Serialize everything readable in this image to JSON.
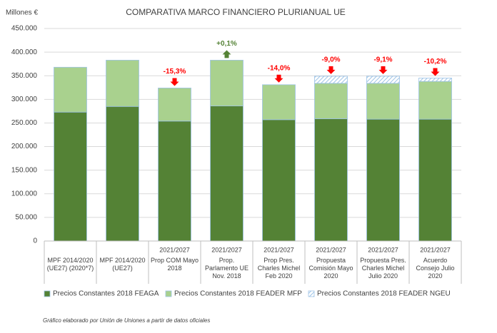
{
  "chart_data": {
    "type": "stacked_bar",
    "title": "COMPARATIVA MARCO FINANCIERO PLURIANUAL UE",
    "y_label": "Millones €",
    "note": "Gráfico elaborado por Unión de Uniones a partir de datos oficiales",
    "categories": [
      "MPF 2014/2020 (UE27) (2020*7)",
      "MPF 2014/2020 (UE27)",
      "Prop COM Mayo 2018",
      "Prop. Parlamento UE Nov. 2018",
      "Prop Pres. Charles Michel Feb 2020",
      "Propuesta Comisión Mayo 2020",
      "Propuesta Pres. Charles Michel Julio 2020",
      "Acuerdo Consejo Julio 2020"
    ],
    "periods": [
      null,
      null,
      "2021/2027",
      "2021/2027",
      "2021/2027",
      "2021/2027",
      "2021/2027",
      "2021/2027"
    ],
    "series": [
      {
        "name": "Precios Constantes 2018 FEAGA",
        "color": "#548235",
        "values": [
          273000,
          285000,
          254000,
          286000,
          257000,
          259000,
          258000,
          258000
        ]
      },
      {
        "name": "Precios Constantes 2018 FEADER MFP",
        "color": "#a9d18e",
        "values": [
          95000,
          98000,
          70000,
          97000,
          74000,
          75000,
          76000,
          80000
        ]
      },
      {
        "name": "Precios Constantes 2018 FEADER NGEU",
        "color": "#9dc3e6",
        "pattern": "hatch",
        "values": [
          0,
          0,
          0,
          0,
          0,
          15000,
          15000,
          7000
        ]
      }
    ],
    "annotations": [
      {
        "index": 2,
        "text": "-15,3%",
        "color": "#ff0000",
        "direction": "down"
      },
      {
        "index": 3,
        "text": "+0,1%",
        "color": "#548235",
        "direction": "up"
      },
      {
        "index": 4,
        "text": "-14,0%",
        "color": "#ff0000",
        "direction": "down"
      },
      {
        "index": 5,
        "text": "-9,0%",
        "color": "#ff0000",
        "direction": "down"
      },
      {
        "index": 6,
        "text": "-9,1%",
        "color": "#ff0000",
        "direction": "down"
      },
      {
        "index": 7,
        "text": "-10,2%",
        "color": "#ff0000",
        "direction": "down"
      }
    ],
    "ylim": [
      0,
      450000
    ],
    "yticks": [
      0,
      {
        "value": 50000,
        "label": "50.000"
      },
      {
        "value": 100000,
        "label": "100.000"
      },
      {
        "value": 150000,
        "label": "150.000"
      },
      {
        "value": 200000,
        "label": "200.000"
      },
      {
        "value": 250000,
        "label": "250.000"
      },
      {
        "value": 300000,
        "label": "300.000"
      },
      {
        "value": 350000,
        "label": "350.000"
      },
      {
        "value": 400000,
        "label": "400.000"
      },
      {
        "value": 450000,
        "label": "450.000"
      }
    ],
    "grid": true
  }
}
